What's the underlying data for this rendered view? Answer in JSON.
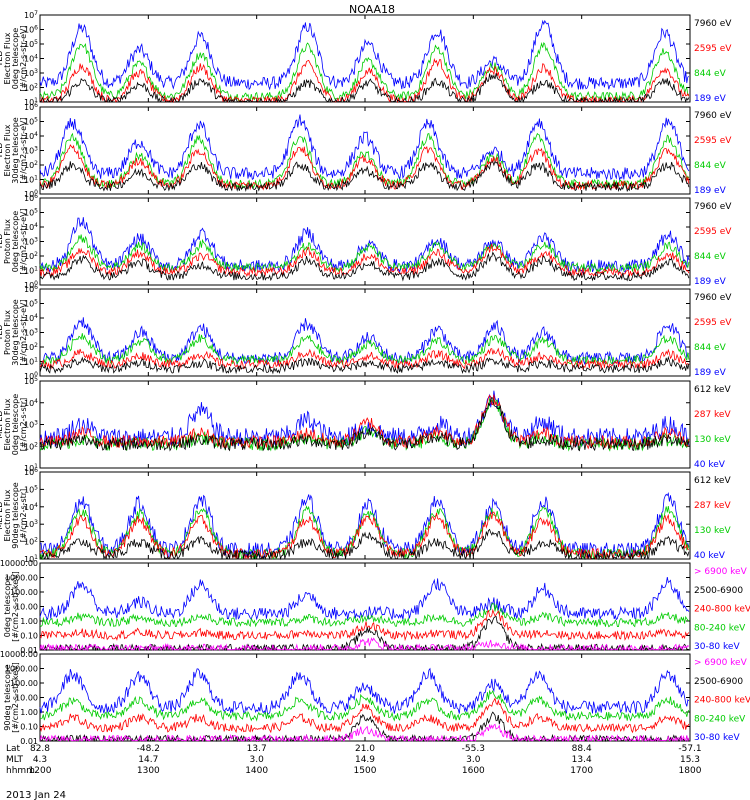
{
  "colors": {
    "blue": "#0000ff",
    "red": "#ff0000",
    "green": "#00cc00",
    "black": "#000000",
    "magenta": "#ff00ff"
  },
  "chart_data": {
    "type": "line",
    "title": "NOAA18",
    "date": "2013 Jan 24",
    "x_ticks": [
      "1200",
      "1300",
      "1400",
      "1500",
      "1600",
      "1700",
      "1800"
    ],
    "x_range": [
      "1200",
      "1800"
    ],
    "axis_rows": [
      {
        "label": "Lat",
        "values": [
          "82.8",
          "-48.2",
          "13.7",
          "21.0",
          "-55.3",
          "88.4",
          "-57.1"
        ]
      },
      {
        "label": "MLT",
        "values": [
          "4.3",
          "14.7",
          "3.0",
          "14.9",
          "3.0",
          "13.4",
          "15.3"
        ]
      },
      {
        "label": "hhmm",
        "values": [
          "1200",
          "1300",
          "1400",
          "1500",
          "1600",
          "1700",
          "1800"
        ]
      }
    ],
    "panels": [
      {
        "ylabel": [
          "TED",
          "Electron Flux",
          "0deg telescope",
          "[#/cm2-s-str-eV]"
        ],
        "yscale": "log",
        "ylim": [
          "1e1",
          "1e7"
        ],
        "y_ticks": [
          "10^1",
          "10^2",
          "10^3",
          "10^4",
          "10^5",
          "10^6",
          "10^7"
        ],
        "legend": [
          {
            "name": "7960 eV",
            "color": "black"
          },
          {
            "name": "2595 eV",
            "color": "red"
          },
          {
            "name": "844 eV",
            "color": "green"
          },
          {
            "name": "189 eV",
            "color": "blue"
          }
        ],
        "base": {
          "blue": 2.3,
          "green": 1.4,
          "red": 1.1,
          "black": 1.0
        },
        "events": [
          {
            "t": 1223,
            "blue": 6.1,
            "green": 5.0,
            "red": 3.5,
            "black": 2.4
          },
          {
            "t": 1255,
            "blue": 4.6,
            "green": 3.6,
            "red": 3.0,
            "black": 2.2
          },
          {
            "t": 1329,
            "blue": 5.5,
            "green": 4.3,
            "red": 3.4,
            "black": 2.5
          },
          {
            "t": 1428,
            "blue": 6.2,
            "green": 4.8,
            "red": 3.6,
            "black": 2.3
          },
          {
            "t": 1502,
            "blue": 5.0,
            "green": 3.8,
            "red": 3.1,
            "black": 2.3
          },
          {
            "t": 1540,
            "blue": 5.9,
            "green": 4.7,
            "red": 3.8,
            "black": 2.4
          },
          {
            "t": 1611,
            "blue": 3.8,
            "green": 3.5,
            "red": 3.2,
            "black": 2.8
          },
          {
            "t": 1639,
            "blue": 6.4,
            "green": 4.9,
            "red": 3.4,
            "black": 2.4
          },
          {
            "t": 1746,
            "blue": 5.8,
            "green": 4.5,
            "red": 3.3,
            "black": 2.4
          }
        ]
      },
      {
        "ylabel": [
          "TED",
          "Electron Flux",
          "30deg telescope",
          "[#/cm2-s-str-eV]"
        ],
        "yscale": "log",
        "ylim": [
          "1e0",
          "1e6"
        ],
        "y_ticks": [
          "10^0",
          "10^1",
          "10^2",
          "10^3",
          "10^4",
          "10^5",
          "10^6"
        ],
        "legend": [
          {
            "name": "7960 eV",
            "color": "black"
          },
          {
            "name": "2595 eV",
            "color": "red"
          },
          {
            "name": "844 eV",
            "color": "green"
          },
          {
            "name": "189 eV",
            "color": "blue"
          }
        ],
        "base": {
          "blue": 1.4,
          "green": 0.7,
          "red": 0.6,
          "black": 0.5
        },
        "events": [
          {
            "t": 1218,
            "blue": 4.9,
            "green": 3.9,
            "red": 3.2,
            "black": 2.0
          },
          {
            "t": 1255,
            "blue": 3.6,
            "green": 2.6,
            "red": 2.3,
            "black": 1.5
          },
          {
            "t": 1328,
            "blue": 4.8,
            "green": 3.8,
            "red": 3.0,
            "black": 2.0
          },
          {
            "t": 1424,
            "blue": 5.1,
            "green": 3.9,
            "red": 3.2,
            "black": 2.0
          },
          {
            "t": 1500,
            "blue": 3.9,
            "green": 2.8,
            "red": 2.4,
            "black": 1.6
          },
          {
            "t": 1535,
            "blue": 4.8,
            "green": 3.9,
            "red": 3.1,
            "black": 2.0
          },
          {
            "t": 1611,
            "blue": 3.0,
            "green": 2.6,
            "red": 2.4,
            "black": 2.1
          },
          {
            "t": 1636,
            "blue": 5.0,
            "green": 3.9,
            "red": 3.0,
            "black": 2.0
          },
          {
            "t": 1748,
            "blue": 4.9,
            "green": 3.8,
            "red": 3.0,
            "black": 2.0
          }
        ]
      },
      {
        "ylabel": [
          "TED",
          "Proton Flux",
          "0deg telescope",
          "[#/cm2-s-str-eV]"
        ],
        "yscale": "log",
        "ylim": [
          "1e0",
          "1e6"
        ],
        "y_ticks": [
          "10^0",
          "10^1",
          "10^2",
          "10^3",
          "10^4",
          "10^5",
          "10^6"
        ],
        "legend": [
          {
            "name": "7960 eV",
            "color": "black"
          },
          {
            "name": "2595 eV",
            "color": "red"
          },
          {
            "name": "844 eV",
            "color": "green"
          },
          {
            "name": "189 eV",
            "color": "blue"
          }
        ],
        "base": {
          "blue": 1.3,
          "green": 1.2,
          "red": 0.9,
          "black": 0.6
        },
        "events": [
          {
            "t": 1223,
            "blue": 4.4,
            "green": 3.2,
            "red": 2.4,
            "black": 1.8
          },
          {
            "t": 1255,
            "blue": 3.2,
            "green": 2.7,
            "red": 2.2,
            "black": 1.6
          },
          {
            "t": 1330,
            "blue": 3.6,
            "green": 2.8,
            "red": 2.0,
            "black": 1.4
          },
          {
            "t": 1428,
            "blue": 3.6,
            "green": 2.7,
            "red": 2.3,
            "black": 1.7
          },
          {
            "t": 1502,
            "blue": 2.8,
            "green": 2.6,
            "red": 2.0,
            "black": 1.5
          },
          {
            "t": 1540,
            "blue": 3.1,
            "green": 2.7,
            "red": 2.2,
            "black": 1.6
          },
          {
            "t": 1611,
            "blue": 3.0,
            "green": 2.7,
            "red": 2.6,
            "black": 2.0
          },
          {
            "t": 1639,
            "blue": 3.3,
            "green": 2.8,
            "red": 2.2,
            "black": 1.7
          },
          {
            "t": 1748,
            "blue": 3.4,
            "green": 2.7,
            "red": 2.1,
            "black": 1.6
          }
        ]
      },
      {
        "ylabel": [
          "TED",
          "Proton Flux",
          "30deg telescope",
          "[#/cm2-s-str-eV]"
        ],
        "yscale": "log",
        "ylim": [
          "1e0",
          "1e6"
        ],
        "y_ticks": [
          "10^0",
          "10^1",
          "10^2",
          "10^3",
          "10^4",
          "10^5",
          "10^6"
        ],
        "legend": [
          {
            "name": "7960 eV",
            "color": "black"
          },
          {
            "name": "2595 eV",
            "color": "red"
          },
          {
            "name": "844 eV",
            "color": "green"
          },
          {
            "name": "189 eV",
            "color": "blue"
          }
        ],
        "base": {
          "blue": 1.2,
          "green": 1.1,
          "red": 0.8,
          "black": 0.5
        },
        "events": [
          {
            "t": 1223,
            "blue": 3.8,
            "green": 2.8,
            "red": 1.6,
            "black": 1.0
          },
          {
            "t": 1256,
            "blue": 3.0,
            "green": 2.4,
            "red": 1.4,
            "black": 0.9
          },
          {
            "t": 1329,
            "blue": 3.3,
            "green": 2.6,
            "red": 1.5,
            "black": 0.9
          },
          {
            "t": 1428,
            "blue": 3.6,
            "green": 2.6,
            "red": 1.6,
            "black": 1.0
          },
          {
            "t": 1502,
            "blue": 2.6,
            "green": 2.2,
            "red": 1.4,
            "black": 0.9
          },
          {
            "t": 1540,
            "blue": 3.2,
            "green": 2.4,
            "red": 1.5,
            "black": 1.0
          },
          {
            "t": 1612,
            "blue": 3.4,
            "green": 2.6,
            "red": 1.7,
            "black": 1.1
          },
          {
            "t": 1639,
            "blue": 3.0,
            "green": 2.4,
            "red": 1.4,
            "black": 0.9
          },
          {
            "t": 1748,
            "blue": 3.5,
            "green": 2.6,
            "red": 1.5,
            "black": 1.0
          }
        ]
      },
      {
        "ylabel": [
          "MEPED",
          "Electron Flux",
          "0deg telescope",
          "[#/cm2-s-str]"
        ],
        "yscale": "log",
        "ylim": [
          "1e1",
          "1e5"
        ],
        "y_ticks": [
          "10^1",
          "10^2",
          "10^3",
          "10^4",
          "10^5"
        ],
        "legend": [
          {
            "name": "612 keV",
            "color": "black"
          },
          {
            "name": "287 keV",
            "color": "red"
          },
          {
            "name": "130 keV",
            "color": "green"
          },
          {
            "name": "40 keV",
            "color": "blue"
          }
        ],
        "base": {
          "blue": 2.4,
          "green": 2.1,
          "red": 2.2,
          "black": 2.1
        },
        "events": [
          {
            "t": 1223,
            "blue": 3.0,
            "green": 2.3,
            "red": 2.6,
            "black": 2.3
          },
          {
            "t": 1329,
            "blue": 3.6,
            "green": 2.4,
            "red": 2.6,
            "black": 2.3
          },
          {
            "t": 1428,
            "blue": 3.2,
            "green": 2.4,
            "red": 2.6,
            "black": 2.3
          },
          {
            "t": 1502,
            "blue": 2.9,
            "green": 2.7,
            "red": 3.1,
            "black": 2.7
          },
          {
            "t": 1540,
            "blue": 3.0,
            "green": 2.4,
            "red": 2.7,
            "black": 2.4
          },
          {
            "t": 1611,
            "blue": 4.2,
            "green": 4.1,
            "red": 4.2,
            "black": 4.0
          },
          {
            "t": 1639,
            "blue": 3.1,
            "green": 2.4,
            "red": 2.6,
            "black": 2.3
          },
          {
            "t": 1748,
            "blue": 3.0,
            "green": 2.3,
            "red": 2.6,
            "black": 2.3
          }
        ]
      },
      {
        "ylabel": [
          "MEPED",
          "Electron Flux",
          "90deg telescope",
          "[#/cm2-s-str]"
        ],
        "yscale": "log",
        "ylim": [
          "1e1",
          "1e6"
        ],
        "y_ticks": [
          "10^1",
          "10^2",
          "10^3",
          "10^4",
          "10^5",
          "10^6"
        ],
        "legend": [
          {
            "name": "612 keV",
            "color": "black"
          },
          {
            "name": "287 keV",
            "color": "red"
          },
          {
            "name": "130 keV",
            "color": "green"
          },
          {
            "name": "40 keV",
            "color": "blue"
          }
        ],
        "base": {
          "blue": 1.5,
          "green": 1.3,
          "red": 1.3,
          "black": 1.2
        },
        "events": [
          {
            "t": 1223,
            "blue": 4.3,
            "green": 3.8,
            "red": 3.3,
            "black": 2.0
          },
          {
            "t": 1255,
            "blue": 4.2,
            "green": 3.6,
            "red": 3.2,
            "black": 2.0
          },
          {
            "t": 1329,
            "blue": 4.4,
            "green": 3.8,
            "red": 3.3,
            "black": 2.0
          },
          {
            "t": 1428,
            "blue": 4.4,
            "green": 3.8,
            "red": 3.3,
            "black": 2.0
          },
          {
            "t": 1502,
            "blue": 4.0,
            "green": 3.6,
            "red": 3.4,
            "black": 2.4
          },
          {
            "t": 1540,
            "blue": 4.3,
            "green": 3.8,
            "red": 3.4,
            "black": 2.0
          },
          {
            "t": 1611,
            "blue": 4.0,
            "green": 3.7,
            "red": 3.5,
            "black": 2.6
          },
          {
            "t": 1639,
            "blue": 4.3,
            "green": 3.8,
            "red": 3.3,
            "black": 2.0
          },
          {
            "t": 1748,
            "blue": 4.4,
            "green": 3.8,
            "red": 3.3,
            "black": 2.0
          }
        ]
      },
      {
        "ylabel": [
          "",
          "",
          "0deg telescope",
          "[#/cm2-s-str-keV]"
        ],
        "yscale": "log",
        "ylim": [
          "0.01",
          "10000.00"
        ],
        "y_ticks": [
          "0.01",
          "0.10",
          "1.00",
          "10.00",
          "100.00",
          "1000.00",
          "10000.00"
        ],
        "legend": [
          {
            "name": "> 6900 keV",
            "color": "magenta"
          },
          {
            "name": "2500-6900",
            "color": "black"
          },
          {
            "name": "240-800 keV",
            "color": "red"
          },
          {
            "name": "80-240 keV",
            "color": "green"
          },
          {
            "name": "30-80 keV",
            "color": "blue"
          }
        ],
        "base": {
          "blue": 0.5,
          "green": -0.1,
          "red": -1.0,
          "black": -1.9,
          "magenta": -1.9
        },
        "events": [
          {
            "t": 1223,
            "blue": 2.5,
            "green": 0.3,
            "red": -0.8,
            "black": -1.9,
            "magenta": -1.9
          },
          {
            "t": 1255,
            "blue": 1.3,
            "green": 0.2,
            "red": -0.8,
            "black": -1.9,
            "magenta": -1.9
          },
          {
            "t": 1329,
            "blue": 2.5,
            "green": 0.3,
            "red": -0.8,
            "black": -1.9,
            "magenta": -1.9
          },
          {
            "t": 1428,
            "blue": 1.8,
            "green": 0.2,
            "red": -0.8,
            "black": -1.9,
            "magenta": -1.9
          },
          {
            "t": 1502,
            "blue": 0.6,
            "green": 0.2,
            "red": -0.3,
            "black": -0.6,
            "magenta": -1.4
          },
          {
            "t": 1540,
            "blue": 2.6,
            "green": 0.3,
            "red": -0.8,
            "black": -1.9,
            "magenta": -1.9
          },
          {
            "t": 1611,
            "blue": 1.2,
            "green": 0.9,
            "red": 0.6,
            "black": 0.1,
            "magenta": -1.5
          },
          {
            "t": 1639,
            "blue": 2.2,
            "green": 0.3,
            "red": -0.8,
            "black": -1.9,
            "magenta": -1.9
          },
          {
            "t": 1748,
            "blue": 2.6,
            "green": 0.3,
            "red": -0.8,
            "black": -1.9,
            "magenta": -1.9
          }
        ]
      },
      {
        "ylabel": [
          "",
          "",
          "90deg telescope",
          "[#/cm2-s-str-keV]"
        ],
        "yscale": "log",
        "ylim": [
          "0.01",
          "10000.00"
        ],
        "y_ticks": [
          "0.01",
          "0.10",
          "1.00",
          "10.00",
          "100.00",
          "1000.00",
          "10000.00"
        ],
        "legend": [
          {
            "name": "> 6900 keV",
            "color": "magenta"
          },
          {
            "name": "2500-6900",
            "color": "black"
          },
          {
            "name": "240-800 keV",
            "color": "red"
          },
          {
            "name": "80-240 keV",
            "color": "green"
          },
          {
            "name": "30-80 keV",
            "color": "blue"
          }
        ],
        "base": {
          "blue": 0.3,
          "green": -0.3,
          "red": -1.1,
          "black": -1.9,
          "magenta": -1.9
        },
        "events": [
          {
            "t": 1218,
            "blue": 2.6,
            "green": 0.8,
            "red": -0.4,
            "black": -1.9,
            "magenta": -1.9
          },
          {
            "t": 1255,
            "blue": 2.5,
            "green": 0.8,
            "red": -0.4,
            "black": -1.9,
            "magenta": -1.9
          },
          {
            "t": 1328,
            "blue": 2.6,
            "green": 0.8,
            "red": -0.4,
            "black": -1.9,
            "magenta": -1.9
          },
          {
            "t": 1424,
            "blue": 2.6,
            "green": 0.8,
            "red": -0.4,
            "black": -1.9,
            "magenta": -1.9
          },
          {
            "t": 1500,
            "blue": 1.8,
            "green": 1.0,
            "red": 0.3,
            "black": -0.4,
            "magenta": -1.2
          },
          {
            "t": 1535,
            "blue": 2.6,
            "green": 0.8,
            "red": -0.4,
            "black": -1.9,
            "magenta": -1.9
          },
          {
            "t": 1611,
            "blue": 1.9,
            "green": 1.3,
            "red": 0.7,
            "black": -0.3,
            "magenta": -1.1
          },
          {
            "t": 1636,
            "blue": 2.6,
            "green": 0.8,
            "red": -0.4,
            "black": -1.9,
            "magenta": -1.9
          },
          {
            "t": 1748,
            "blue": 2.6,
            "green": 0.8,
            "red": -0.4,
            "black": -1.9,
            "magenta": -1.9
          }
        ]
      }
    ]
  }
}
